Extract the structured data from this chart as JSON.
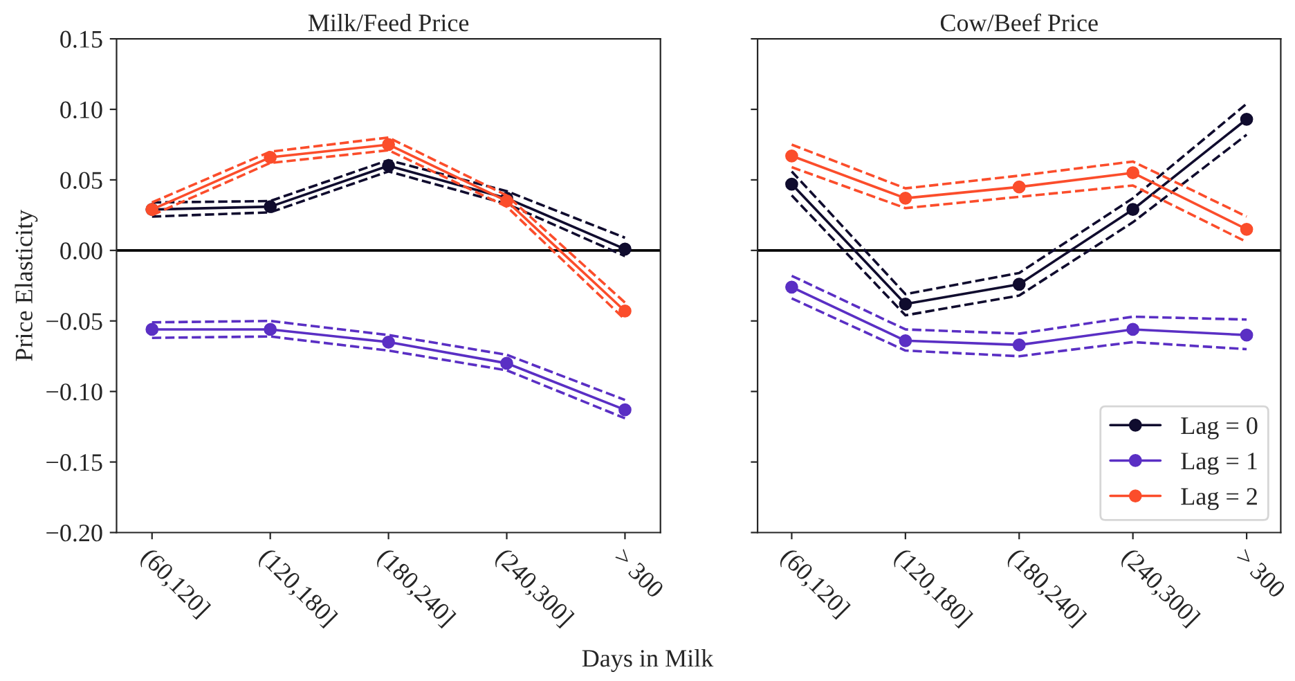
{
  "chart_data": [
    {
      "type": "line",
      "title": "Milk/Feed Price",
      "xlabel": "Days in Milk",
      "ylabel": "Price Elasticity",
      "categories": [
        "(60,120]",
        "(120,180]",
        "(180,240]",
        "(240,300]",
        "> 300"
      ],
      "ylim": [
        -0.2,
        0.15
      ],
      "yticks": [
        {
          "value": -0.2,
          "label": "−0.20"
        },
        {
          "value": -0.15,
          "label": "−0.15"
        },
        {
          "value": -0.1,
          "label": "−0.10"
        },
        {
          "value": -0.05,
          "label": "−0.05"
        },
        {
          "value": 0,
          "label": "0.00"
        },
        {
          "value": 0.05,
          "label": "0.05"
        },
        {
          "value": 0.1,
          "label": "0.10"
        },
        {
          "value": 0.15,
          "label": "0.15"
        }
      ],
      "marker": "circle",
      "line_style": "solid",
      "grid": false,
      "ref_lines": [
        {
          "axis": "y",
          "value": 0,
          "color": "#000000"
        }
      ],
      "series": [
        {
          "color": "#100c2e",
          "values": [
            0.029,
            0.031,
            0.06,
            0.037,
            0.001
          ]
        },
        {
          "color": "#100c2e",
          "marker": "none",
          "line_style": "dashed",
          "values": [
            0.024,
            0.027,
            0.056,
            0.033,
            -0.004
          ]
        },
        {
          "color": "#100c2e",
          "marker": "none",
          "line_style": "dashed",
          "values": [
            0.034,
            0.035,
            0.064,
            0.042,
            0.009
          ]
        },
        {
          "color": "#5a2fc4",
          "values": [
            -0.056,
            -0.056,
            -0.065,
            -0.08,
            -0.113
          ]
        },
        {
          "color": "#5a2fc4",
          "marker": "none",
          "line_style": "dashed",
          "values": [
            -0.062,
            -0.061,
            -0.071,
            -0.085,
            -0.119
          ]
        },
        {
          "color": "#5a2fc4",
          "marker": "none",
          "line_style": "dashed",
          "values": [
            -0.051,
            -0.05,
            -0.06,
            -0.074,
            -0.106
          ]
        },
        {
          "color": "#fb4d2b",
          "values": [
            0.029,
            0.066,
            0.075,
            0.035,
            -0.043
          ]
        },
        {
          "color": "#fb4d2b",
          "marker": "none",
          "line_style": "dashed",
          "values": [
            0.025,
            0.062,
            0.071,
            0.031,
            -0.049
          ]
        },
        {
          "color": "#fb4d2b",
          "marker": "none",
          "line_style": "dashed",
          "values": [
            0.034,
            0.07,
            0.08,
            0.039,
            -0.037
          ]
        }
      ]
    },
    {
      "type": "line",
      "title": "Cow/Beef Price",
      "categories": [
        "(60,120]",
        "(120,180]",
        "(180,240]",
        "(240,300]",
        "> 300"
      ],
      "ylim": [
        -0.2,
        0.15
      ],
      "yticks": [
        -0.2,
        -0.15,
        -0.1,
        -0.05,
        0,
        0.05,
        0.1,
        0.15
      ],
      "tick_labels": "x",
      "marker": "circle",
      "line_style": "solid",
      "grid": false,
      "legend": "bottom right",
      "ref_lines": [
        {
          "axis": "y",
          "value": 0,
          "color": "#000000"
        }
      ],
      "series": [
        {
          "name": "Lag = 0",
          "color": "#100c2e",
          "values": [
            0.047,
            -0.038,
            -0.024,
            0.029,
            0.093
          ]
        },
        {
          "color": "#100c2e",
          "marker": "none",
          "line_style": "dashed",
          "values": [
            0.039,
            -0.046,
            -0.032,
            0.02,
            0.082
          ]
        },
        {
          "color": "#100c2e",
          "marker": "none",
          "line_style": "dashed",
          "values": [
            0.056,
            -0.031,
            -0.016,
            0.037,
            0.104
          ]
        },
        {
          "name": "Lag = 1",
          "color": "#5a2fc4",
          "values": [
            -0.026,
            -0.064,
            -0.067,
            -0.056,
            -0.06
          ]
        },
        {
          "color": "#5a2fc4",
          "marker": "none",
          "line_style": "dashed",
          "values": [
            -0.034,
            -0.071,
            -0.075,
            -0.065,
            -0.07
          ]
        },
        {
          "color": "#5a2fc4",
          "marker": "none",
          "line_style": "dashed",
          "values": [
            -0.018,
            -0.056,
            -0.059,
            -0.047,
            -0.049
          ]
        },
        {
          "name": "Lag = 2",
          "color": "#fb4d2b",
          "values": [
            0.067,
            0.037,
            0.045,
            0.055,
            0.015
          ]
        },
        {
          "color": "#fb4d2b",
          "marker": "none",
          "line_style": "dashed",
          "values": [
            0.059,
            0.03,
            0.038,
            0.046,
            0.006
          ]
        },
        {
          "color": "#fb4d2b",
          "marker": "none",
          "line_style": "dashed",
          "values": [
            0.075,
            0.044,
            0.053,
            0.063,
            0.024
          ]
        }
      ]
    }
  ]
}
